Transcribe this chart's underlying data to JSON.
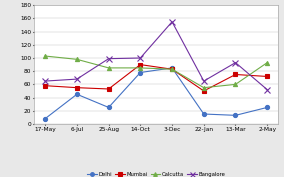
{
  "x_labels": [
    "17-May",
    "6-Jul",
    "25-Aug",
    "14-Oct",
    "3-Dec",
    "22-Jan",
    "13-Mar",
    "2-May"
  ],
  "series": {
    "Delhi": [
      8,
      45,
      25,
      78,
      85,
      15,
      13,
      25
    ],
    "Mumbai": [
      58,
      55,
      53,
      90,
      83,
      50,
      75,
      72
    ],
    "Calcutta": [
      103,
      98,
      85,
      85,
      83,
      55,
      60,
      93
    ],
    "Bangalore": [
      65,
      68,
      99,
      100,
      155,
      65,
      93,
      52
    ]
  },
  "colors": {
    "Delhi": "#4472C4",
    "Mumbai": "#CC0000",
    "Calcutta": "#70AD47",
    "Bangalore": "#7030A0"
  },
  "markers": {
    "Delhi": "o",
    "Mumbai": "s",
    "Calcutta": "^",
    "Bangalore": "x"
  },
  "ylim": [
    0,
    180
  ],
  "yticks": [
    0,
    20,
    40,
    60,
    80,
    100,
    120,
    140,
    160,
    180
  ],
  "grid": true,
  "background": "#FFFFFF",
  "plot_area_bg": "#FFFFFF",
  "outer_bg": "#E8E8E8"
}
